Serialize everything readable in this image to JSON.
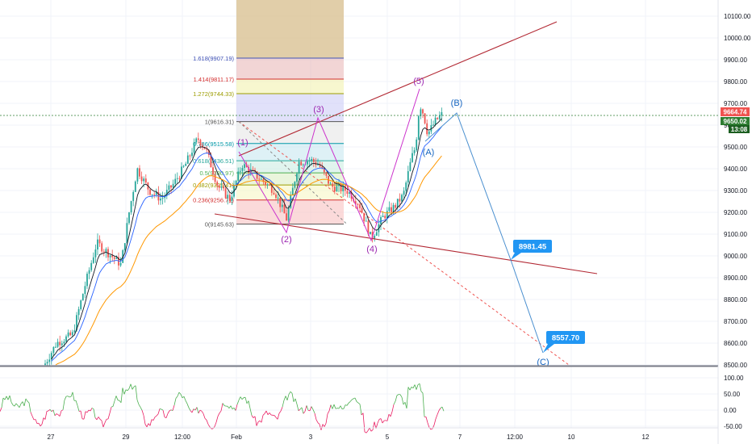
{
  "chart_data": [
    {
      "type": "candlestick",
      "title": "",
      "x_tick_labels": [
        "27",
        "29",
        "12:00",
        "Feb",
        "3",
        "5",
        "7",
        "12:00",
        "10",
        "12"
      ],
      "y_tick_labels": [
        "10100.00",
        "10000.00",
        "9900.00",
        "9800.00",
        "9700.00",
        "9600.00",
        "9500.00",
        "9400.00",
        "9300.00",
        "9200.00",
        "9100.00",
        "9000.00",
        "8900.00",
        "8800.00",
        "8700.00",
        "8600.00",
        "8500.00"
      ],
      "ylim": [
        8500,
        10150
      ],
      "colors": {
        "up": "#26a69a",
        "down": "#ef5350",
        "ema_fast": "#131722",
        "ema_medium": "#2962ff",
        "ema_slow": "#ff9800",
        "channel": "#b22833",
        "abc_path": "#4a8fcf",
        "wave_path": "#cc33cc",
        "last_price_line": "#2e7d32"
      },
      "last_price": "9664.74",
      "current_price": "9650.02",
      "countdown": "13:08",
      "fibonacci": {
        "start_price": 9145.63,
        "end_price": 9616.31,
        "levels": [
          {
            "label": "0(9145.63)",
            "price": 9145.63,
            "color": "#555555"
          },
          {
            "label": "0.236(9256.71)",
            "price": 9256.71,
            "color": "#d32f2f"
          },
          {
            "label": "0.382(9325.41)",
            "price": 9325.41,
            "color": "#9c9c00"
          },
          {
            "label": "0.5(9380.97)",
            "price": 9380.97,
            "color": "#4caf50"
          },
          {
            "label": "0.618(9436.51)",
            "price": 9436.51,
            "color": "#26a69a"
          },
          {
            "label": "0.786(9515.58)",
            "price": 9515.58,
            "color": "#0097a7"
          },
          {
            "label": "1(9616.31)",
            "price": 9616.31,
            "color": "#555555"
          },
          {
            "label": "1.272(9744.33)",
            "price": 9744.33,
            "color": "#9c9c00"
          },
          {
            "label": "1.414(9811.17)",
            "price": 9811.17,
            "color": "#d32f2f"
          },
          {
            "label": "1.618(9907.19)",
            "price": 9907.19,
            "color": "#3f51b5"
          }
        ]
      },
      "wave_labels": [
        "(1)",
        "(2)",
        "(3)",
        "(4)",
        "(5)"
      ],
      "abc_labels": [
        "(A)",
        "(B)",
        "(C)"
      ],
      "targets": [
        {
          "label": "8981.45",
          "price": 8981.45
        },
        {
          "label": "8557.70",
          "price": 8557.7
        }
      ]
    },
    {
      "type": "line",
      "title": "",
      "y_tick_labels": [
        "100.00",
        "50.00",
        "0.00",
        "-50.00"
      ],
      "ylim": [
        -62,
        125
      ]
    }
  ]
}
